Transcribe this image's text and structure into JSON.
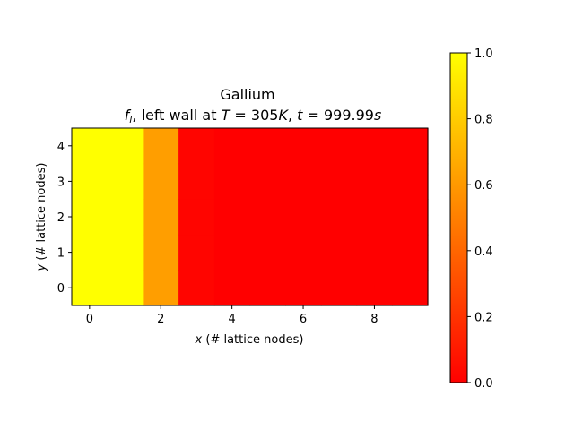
{
  "chart_data": {
    "type": "heatmap",
    "title": "Gallium",
    "subtitle": {
      "f": "f",
      "sub": "l",
      "part1": ", left wall at ",
      "T": "T",
      "eq_T": " = 305",
      "K": "K",
      "part2": ", ",
      "t": "t",
      "eq_t": " = 999.99",
      "s": "s"
    },
    "xlabel": {
      "var": "x",
      "rest": " (# lattice nodes)"
    },
    "ylabel": {
      "var": "y",
      "rest": " (# lattice nodes)"
    },
    "x_range": [
      -0.5,
      9.5
    ],
    "y_range": [
      -0.5,
      4.5
    ],
    "x_ticks": [
      0,
      2,
      4,
      6,
      8
    ],
    "y_ticks": [
      0,
      1,
      2,
      3,
      4
    ],
    "column_values": [
      1.0,
      1.0,
      0.62,
      0.02,
      0.0,
      0.0,
      0.0,
      0.0,
      0.0,
      0.0
    ],
    "rows": 5,
    "colorbar": {
      "min": 0.0,
      "max": 1.0,
      "ticks": [
        "0.0",
        "0.2",
        "0.4",
        "0.6",
        "0.8",
        "1.0"
      ],
      "colormap": "autumn",
      "low_color": "#ff0000",
      "high_color": "#ffff00"
    }
  }
}
